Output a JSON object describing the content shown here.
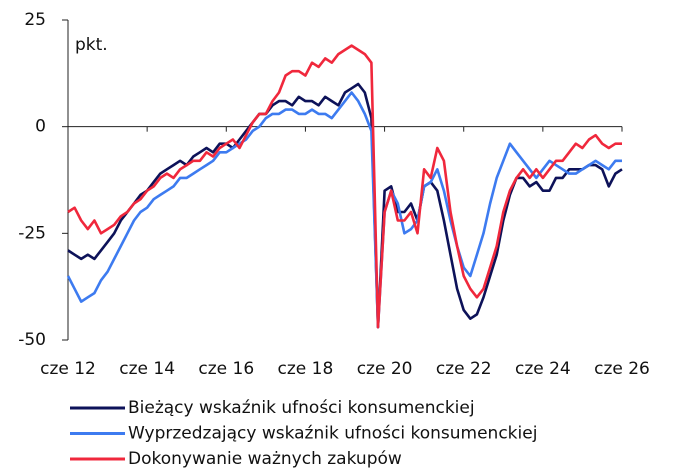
{
  "chart_data": {
    "type": "line",
    "y_label": "pkt.",
    "categories": [
      "cze 12",
      null,
      null,
      null,
      null,
      null,
      null,
      null,
      null,
      null,
      null,
      null,
      "cze 14",
      null,
      null,
      null,
      null,
      null,
      null,
      null,
      null,
      null,
      null,
      null,
      "cze 16",
      null,
      null,
      null,
      null,
      null,
      null,
      null,
      null,
      null,
      null,
      null,
      "cze 18",
      null,
      null,
      null,
      null,
      null,
      null,
      null,
      null,
      null,
      null,
      null,
      "cze 20",
      null,
      null,
      null,
      null,
      null,
      null,
      null,
      null,
      null,
      null,
      null,
      "cze 22",
      null,
      null,
      null,
      null,
      null,
      null,
      null,
      null,
      null,
      null,
      null,
      "cze 24",
      null,
      null,
      null,
      null,
      null,
      null,
      null,
      null,
      null,
      null,
      null,
      "cze 26"
    ],
    "series": [
      {
        "name": "Bieżący wskaźnik ufności konsumenckiej",
        "color": "#0d1259",
        "values": [
          -29,
          -30,
          -31,
          -30,
          -31,
          -29,
          -27,
          -25,
          -22,
          -20,
          -18,
          -16,
          -15,
          -13,
          -11,
          -10,
          -9,
          -8,
          -9,
          -7,
          -6,
          -5,
          -6,
          -4,
          -4,
          -5,
          -3,
          -1,
          1,
          3,
          3,
          5,
          6,
          6,
          5,
          7,
          6,
          6,
          5,
          7,
          6,
          5,
          8,
          9,
          10,
          8,
          2,
          -47,
          -15,
          -14,
          -20,
          -20,
          -18,
          -22,
          -14,
          -13,
          -15,
          -22,
          -30,
          -38,
          -43,
          -45,
          -44,
          -40,
          -35,
          -30,
          -22,
          -16,
          -12,
          -12,
          -14,
          -13,
          -15,
          -15,
          -12,
          -12,
          -10,
          -10,
          -10,
          -9,
          -9,
          -10,
          -14,
          -11,
          -10
        ]
      },
      {
        "name": "Wyprzedzający wskaźnik ufności konsumenckiej",
        "color": "#3d7bf0",
        "values": [
          -35,
          -38,
          -41,
          -40,
          -39,
          -36,
          -34,
          -31,
          -28,
          -25,
          -22,
          -20,
          -19,
          -17,
          -16,
          -15,
          -14,
          -12,
          -12,
          -11,
          -10,
          -9,
          -8,
          -6,
          -6,
          -5,
          -4,
          -3,
          -1,
          0,
          2,
          3,
          3,
          4,
          4,
          3,
          3,
          4,
          3,
          3,
          2,
          4,
          6,
          8,
          6,
          3,
          -1,
          -47,
          -20,
          -15,
          -18,
          -25,
          -24,
          -22,
          -14,
          -13,
          -10,
          -15,
          -22,
          -28,
          -33,
          -35,
          -30,
          -25,
          -18,
          -12,
          -8,
          -4,
          -6,
          -8,
          -10,
          -12,
          -10,
          -8,
          -9,
          -10,
          -11,
          -11,
          -10,
          -9,
          -8,
          -9,
          -10,
          -8,
          -8
        ]
      },
      {
        "name": "Dokonywanie ważnych zakupów",
        "color": "#f0283c",
        "values": [
          -20,
          -19,
          -22,
          -24,
          -22,
          -25,
          -24,
          -23,
          -21,
          -20,
          -18,
          -17,
          -15,
          -14,
          -12,
          -11,
          -12,
          -10,
          -9,
          -8,
          -8,
          -6,
          -7,
          -5,
          -4,
          -3,
          -5,
          -2,
          1,
          3,
          3,
          6,
          8,
          12,
          13,
          13,
          12,
          15,
          14,
          16,
          15,
          17,
          18,
          19,
          18,
          17,
          15,
          -47,
          -20,
          -15,
          -22,
          -22,
          -20,
          -25,
          -10,
          -12,
          -5,
          -8,
          -20,
          -28,
          -35,
          -38,
          -40,
          -38,
          -33,
          -28,
          -20,
          -15,
          -12,
          -10,
          -12,
          -10,
          -12,
          -10,
          -8,
          -8,
          -6,
          -4,
          -5,
          -3,
          -2,
          -4,
          -5,
          -4,
          -4
        ]
      }
    ],
    "ylim": [
      -50,
      25
    ],
    "yticks": [
      25,
      0,
      -25,
      -50
    ]
  }
}
